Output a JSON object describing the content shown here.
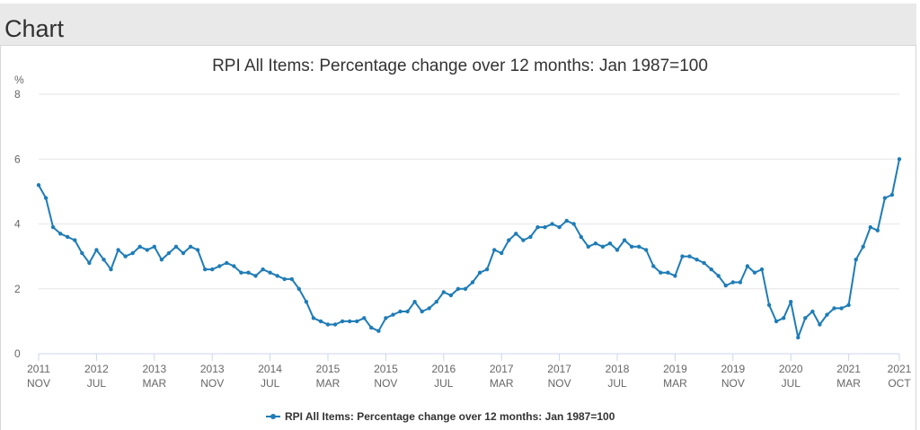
{
  "header": {
    "title": "Chart"
  },
  "chart_data": {
    "type": "line",
    "title": "RPI All Items: Percentage change over 12 months: Jan 1987=100",
    "ylabel": "%",
    "xlabel": "",
    "ylim": [
      0,
      8
    ],
    "yticks": [
      0,
      2,
      4,
      6,
      8
    ],
    "grid": true,
    "legend_position": "bottom",
    "color": "#1f7cb6",
    "x_ticks": [
      {
        "year": "2011",
        "month": "NOV"
      },
      {
        "year": "2012",
        "month": "JUL"
      },
      {
        "year": "2013",
        "month": "MAR"
      },
      {
        "year": "2013",
        "month": "NOV"
      },
      {
        "year": "2014",
        "month": "JUL"
      },
      {
        "year": "2015",
        "month": "MAR"
      },
      {
        "year": "2015",
        "month": "NOV"
      },
      {
        "year": "2016",
        "month": "JUL"
      },
      {
        "year": "2017",
        "month": "MAR"
      },
      {
        "year": "2017",
        "month": "NOV"
      },
      {
        "year": "2018",
        "month": "JUL"
      },
      {
        "year": "2019",
        "month": "MAR"
      },
      {
        "year": "2019",
        "month": "NOV"
      },
      {
        "year": "2020",
        "month": "JUL"
      },
      {
        "year": "2021",
        "month": "MAR"
      },
      {
        "year": "2021",
        "month": "OCT"
      }
    ],
    "x_start": "2011-11",
    "x_end": "2021-10",
    "series": [
      {
        "name": "RPI All Items: Percentage change over 12 months: Jan 1987=100",
        "values": [
          5.2,
          4.8,
          3.9,
          3.7,
          3.6,
          3.5,
          3.1,
          2.8,
          3.2,
          2.9,
          2.6,
          3.2,
          3.0,
          3.1,
          3.3,
          3.2,
          3.3,
          2.9,
          3.1,
          3.3,
          3.1,
          3.3,
          3.2,
          2.6,
          2.6,
          2.7,
          2.8,
          2.7,
          2.5,
          2.5,
          2.4,
          2.6,
          2.5,
          2.4,
          2.3,
          2.3,
          2.0,
          1.6,
          1.1,
          1.0,
          0.9,
          0.9,
          1.0,
          1.0,
          1.0,
          1.1,
          0.8,
          0.7,
          1.1,
          1.2,
          1.3,
          1.3,
          1.6,
          1.3,
          1.4,
          1.6,
          1.9,
          1.8,
          2.0,
          2.0,
          2.2,
          2.5,
          2.6,
          3.2,
          3.1,
          3.5,
          3.7,
          3.5,
          3.6,
          3.9,
          3.9,
          4.0,
          3.9,
          4.1,
          4.0,
          3.6,
          3.3,
          3.4,
          3.3,
          3.4,
          3.2,
          3.5,
          3.3,
          3.3,
          3.2,
          2.7,
          2.5,
          2.5,
          2.4,
          3.0,
          3.0,
          2.9,
          2.8,
          2.6,
          2.4,
          2.1,
          2.2,
          2.2,
          2.7,
          2.5,
          2.6,
          1.5,
          1.0,
          1.1,
          1.6,
          0.5,
          1.1,
          1.3,
          0.9,
          1.2,
          1.4,
          1.4,
          1.5,
          2.9,
          3.3,
          3.9,
          3.8,
          4.8,
          4.9,
          6.0
        ]
      }
    ]
  }
}
